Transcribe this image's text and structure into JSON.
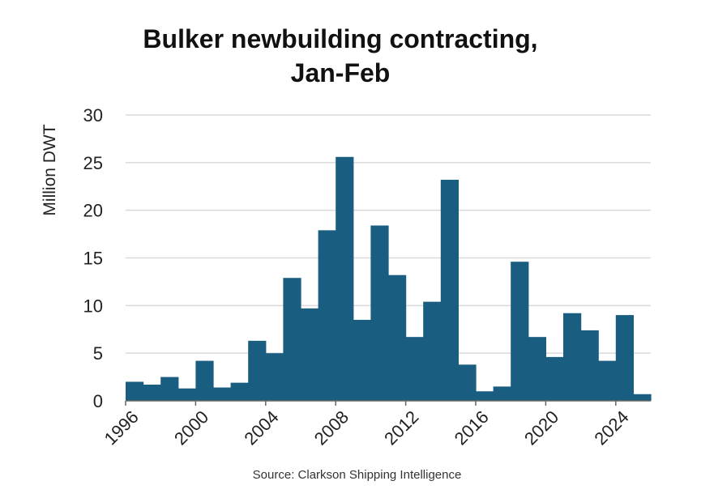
{
  "chart_data": {
    "type": "bar",
    "title_line1": "Bulker newbuilding contracting,",
    "title_line2": "Jan-Feb",
    "ylabel": "Million DWT",
    "xlabel": "",
    "ylim": [
      0,
      30
    ],
    "yticks": [
      0,
      5,
      10,
      15,
      20,
      25,
      30
    ],
    "xticks": [
      "1996",
      "2000",
      "2004",
      "2008",
      "2012",
      "2016",
      "2020",
      "2024"
    ],
    "categories": [
      "1996",
      "1997",
      "1998",
      "1999",
      "2000",
      "2001",
      "2002",
      "2003",
      "2004",
      "2005",
      "2006",
      "2007",
      "2008",
      "2009",
      "2010",
      "2011",
      "2012",
      "2013",
      "2014",
      "2015",
      "2016",
      "2017",
      "2018",
      "2019",
      "2020",
      "2021",
      "2022",
      "2023",
      "2024",
      "2025"
    ],
    "values": [
      2.0,
      1.7,
      2.5,
      1.3,
      4.2,
      1.4,
      1.9,
      6.3,
      5.0,
      12.9,
      9.7,
      17.9,
      25.6,
      8.5,
      18.4,
      13.2,
      6.7,
      10.4,
      23.2,
      3.8,
      1.0,
      1.5,
      14.6,
      6.7,
      4.6,
      9.2,
      7.4,
      4.2,
      9.0,
      0.7
    ],
    "grid": true,
    "legend": "none",
    "bar_color": "#195D80",
    "grid_color": "#D9D9D9",
    "source": "Source: Clarkson Shipping Intelligence"
  }
}
